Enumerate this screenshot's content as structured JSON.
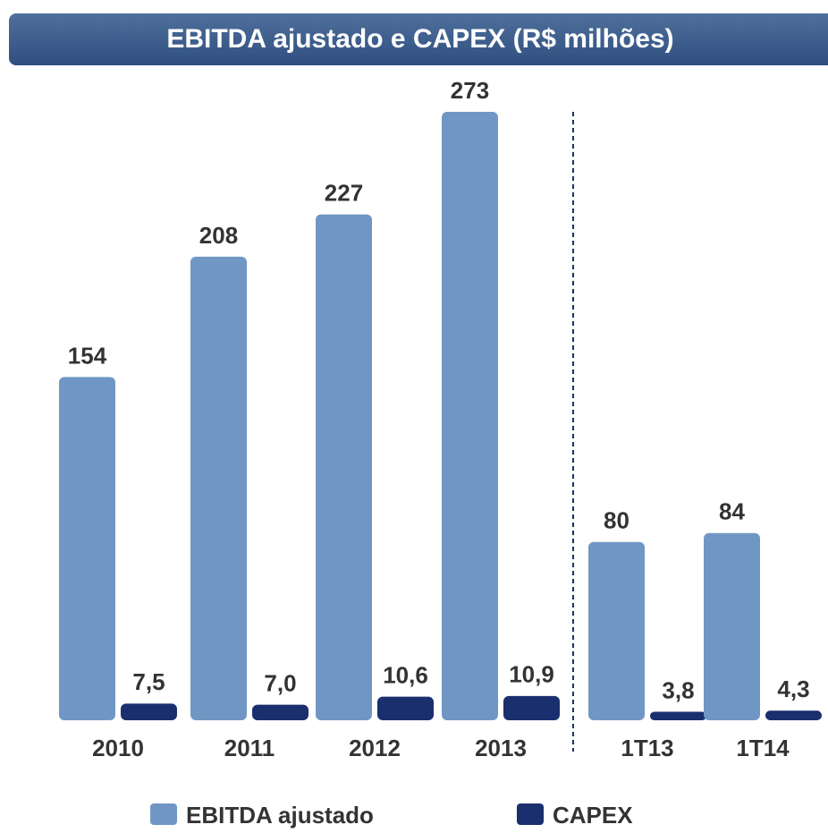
{
  "chart_data": {
    "type": "bar",
    "title": "EBITDA ajustado e CAPEX (R$ milhões)",
    "categories": [
      "2010",
      "2011",
      "2012",
      "2013",
      "1T13",
      "1T14"
    ],
    "series": [
      {
        "name": "EBITDA ajustado",
        "color": "#7097c4",
        "values": [
          154,
          208,
          227,
          273,
          80,
          84
        ]
      },
      {
        "name": "CAPEX",
        "color": "#1a2f6e",
        "values": [
          7.5,
          7.0,
          10.6,
          10.9,
          3.8,
          4.3
        ],
        "value_labels": [
          "7,5",
          "7,0",
          "10,6",
          "10,9",
          "3,8",
          "4,3"
        ]
      }
    ]
  }
}
